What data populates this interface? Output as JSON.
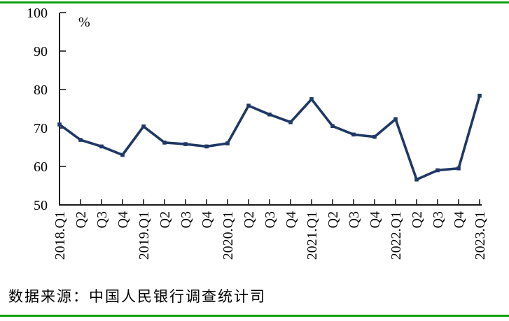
{
  "page": {
    "source_note": "数据来源：中国人民银行调查统计司",
    "divider_color": "#10A010",
    "background": "#FFFFFF"
  },
  "chart_data": {
    "type": "line",
    "title": "",
    "unit_label": "%",
    "categories": [
      "2018.Q1",
      "Q2",
      "Q3",
      "Q4",
      "2019.Q1",
      "Q2",
      "Q3",
      "Q4",
      "2020.Q1",
      "Q2",
      "Q3",
      "Q4",
      "2021.Q1",
      "Q2",
      "Q3",
      "Q4",
      "2022.Q1",
      "Q2",
      "Q3",
      "Q4",
      "2023.Q1"
    ],
    "values": [
      70.9,
      66.9,
      65.2,
      63.0,
      70.4,
      66.2,
      65.8,
      65.2,
      66.0,
      75.8,
      73.5,
      71.5,
      77.5,
      70.5,
      68.3,
      67.7,
      72.3,
      56.6,
      59.0,
      59.5,
      78.4
    ],
    "ylim": [
      50,
      100
    ],
    "yticks": [
      100,
      90,
      80,
      70,
      60,
      50
    ],
    "grid": false,
    "legend": "none",
    "line_color": "#1F3864",
    "marker": "square",
    "axis_color": "#1a1a1a",
    "xlabel_rotation": -90
  }
}
